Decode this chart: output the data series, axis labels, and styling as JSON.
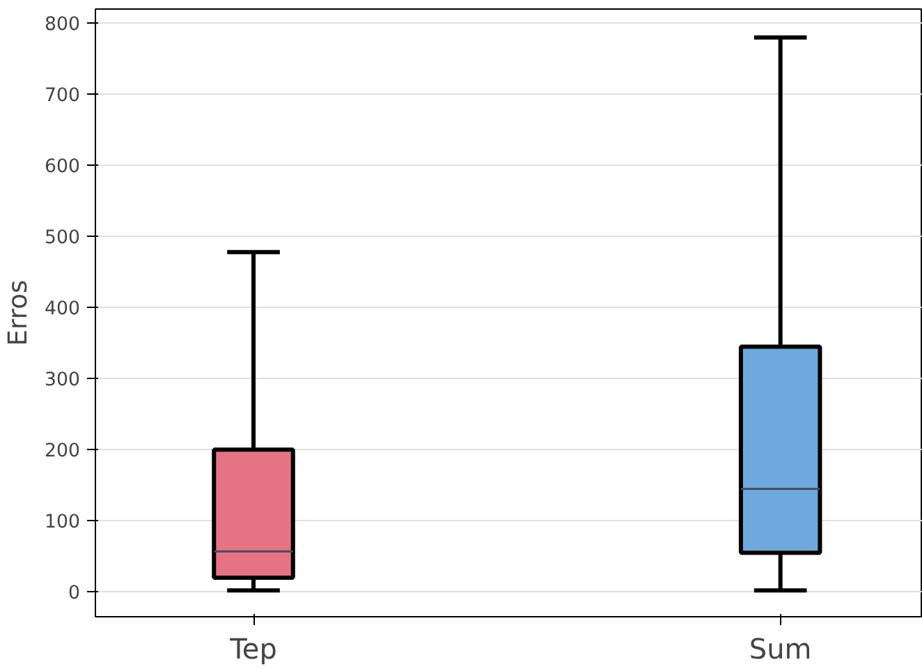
{
  "chart_data": {
    "type": "box",
    "ylabel": "Erros",
    "categories": [
      "Tep",
      "Sum"
    ],
    "colors": [
      "#e57383",
      "#6fa8dc"
    ],
    "boxes": [
      {
        "low": 2,
        "q1": 20,
        "median": 57,
        "q3": 200,
        "high": 478
      },
      {
        "low": 2,
        "q1": 55,
        "median": 145,
        "q3": 345,
        "high": 780
      }
    ],
    "ylim": [
      -35,
      820
    ],
    "yticks": [
      0,
      100,
      200,
      300,
      400,
      500,
      600,
      700,
      800
    ],
    "grid": "y"
  }
}
